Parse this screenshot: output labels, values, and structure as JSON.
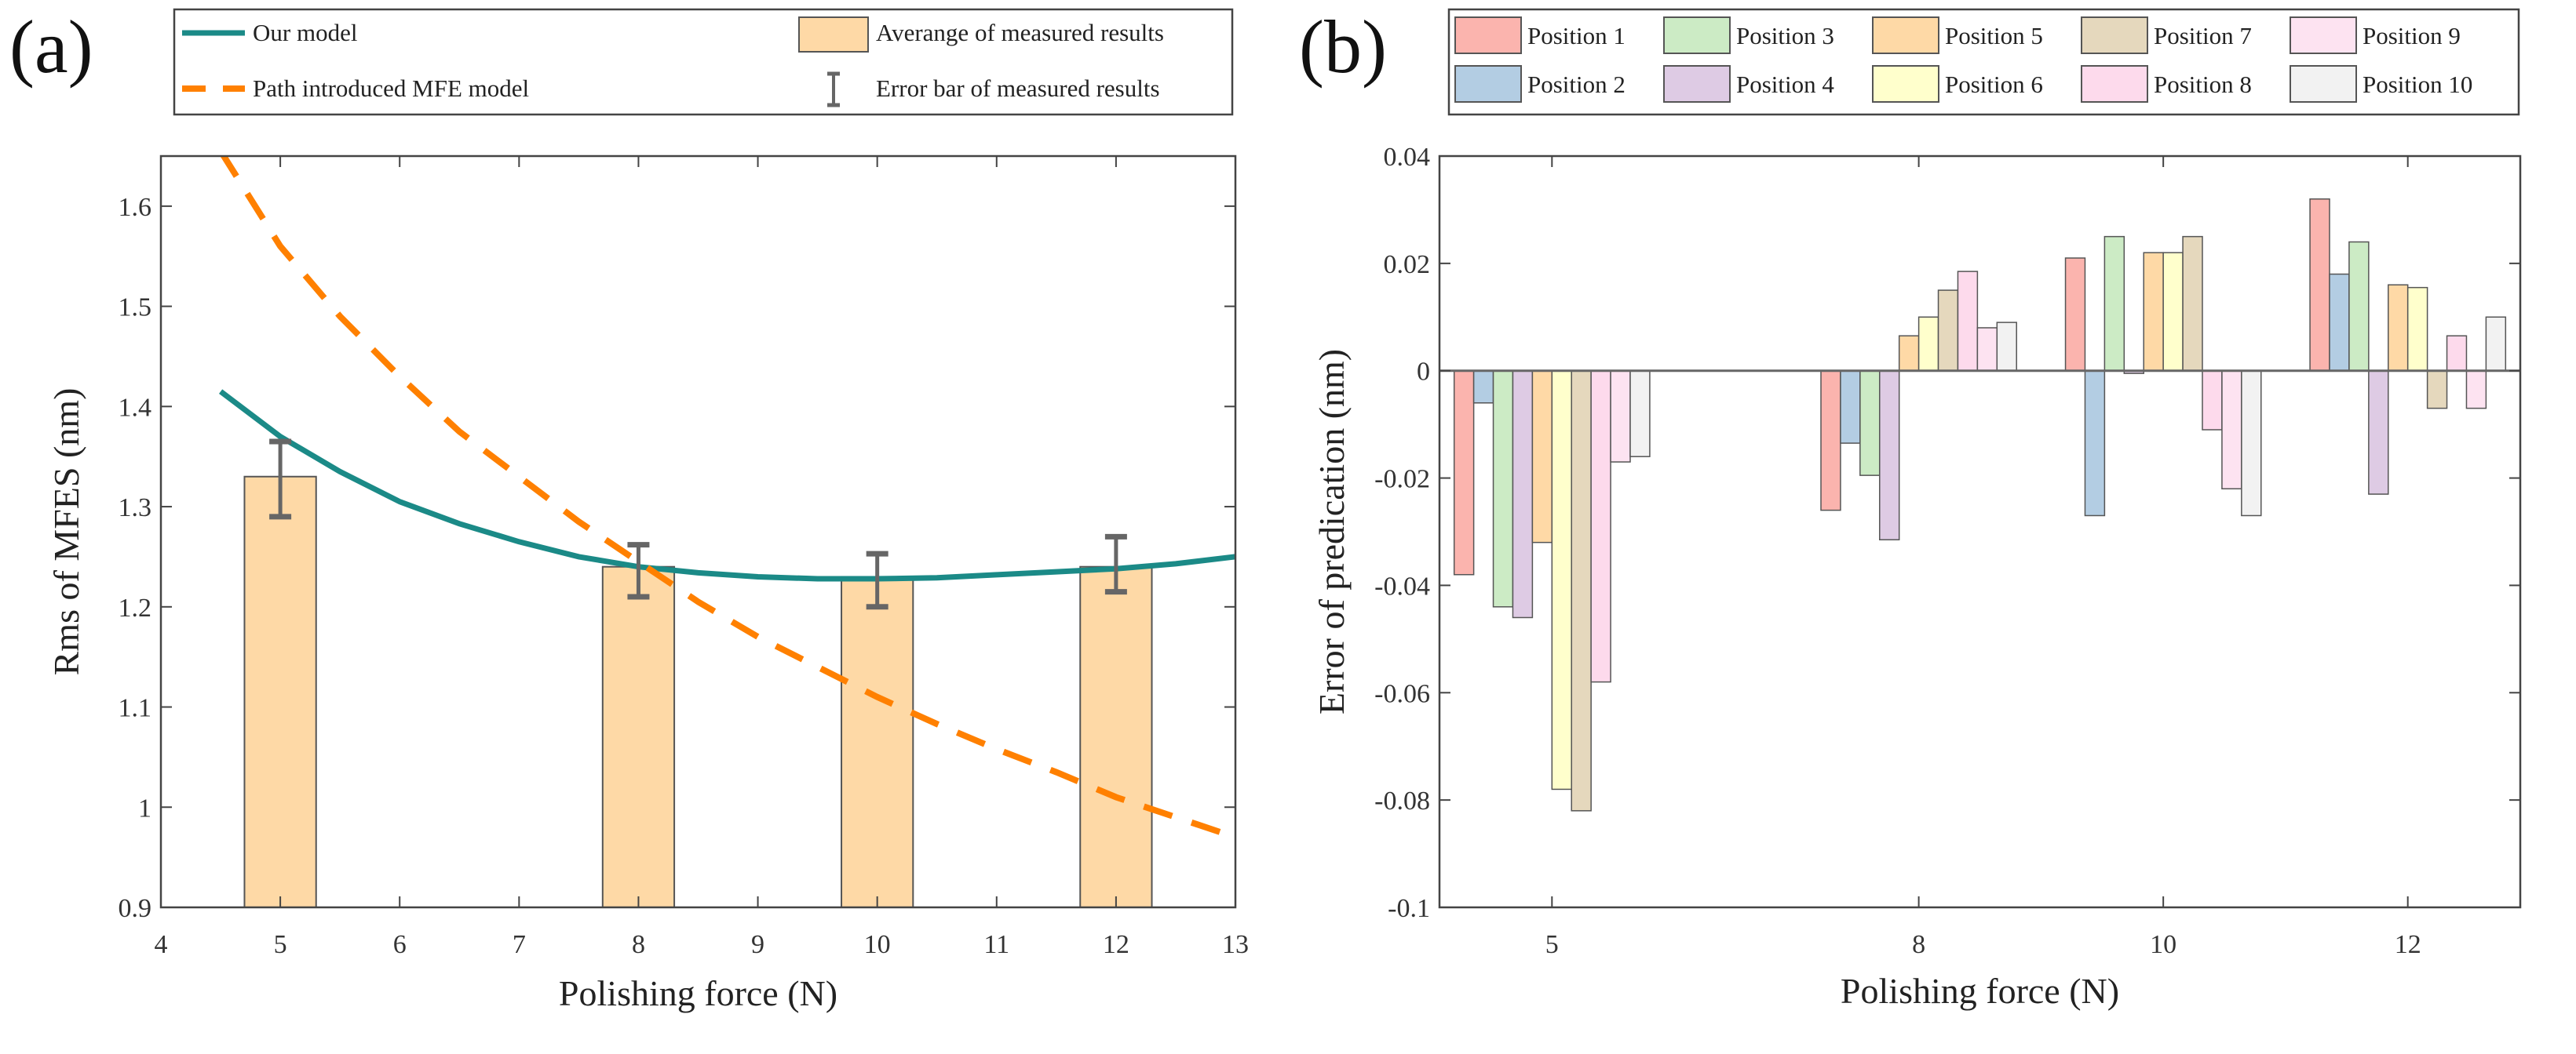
{
  "chart_data": [
    {
      "panel_label": "(a)",
      "type": "bar",
      "xlabel": "Polishing force (N)",
      "ylabel": "Rms of MFES (nm)",
      "xlim": [
        4,
        13
      ],
      "ylim": [
        0.9,
        1.65
      ],
      "xticks": [
        4,
        5,
        6,
        7,
        8,
        9,
        10,
        11,
        12,
        13
      ],
      "yticks": [
        0.9,
        1,
        1.1,
        1.2,
        1.3,
        1.4,
        1.5,
        1.6
      ],
      "ytick_labels": [
        "0.9",
        "1",
        "1.1",
        "1.2",
        "1.3",
        "1.4",
        "1.5",
        "1.6"
      ],
      "legend": [
        "Our model",
        "Path introduced MFE model",
        "Averange of measured results",
        "Error bar of measured results"
      ],
      "legend_placement": "top",
      "bars": {
        "name": "Averange of measured results",
        "x": [
          5,
          8,
          10,
          12
        ],
        "values": [
          1.33,
          1.24,
          1.23,
          1.24
        ],
        "err_low": [
          1.29,
          1.21,
          1.2,
          1.215
        ],
        "err_high": [
          1.365,
          1.262,
          1.253,
          1.27
        ],
        "color": "#fed9a6"
      },
      "series": [
        {
          "name": "Our model",
          "type": "line",
          "color": "#1b8a87",
          "x": [
            4.5,
            5,
            5.5,
            6,
            6.5,
            7,
            7.5,
            8,
            8.5,
            9,
            9.5,
            10,
            10.5,
            11,
            11.5,
            12,
            12.5,
            13
          ],
          "y": [
            1.415,
            1.37,
            1.335,
            1.305,
            1.283,
            1.265,
            1.25,
            1.24,
            1.234,
            1.23,
            1.228,
            1.228,
            1.229,
            1.232,
            1.235,
            1.238,
            1.243,
            1.25
          ]
        },
        {
          "name": "Path introduced MFE model",
          "type": "line",
          "dash": true,
          "color": "#ff8000",
          "x": [
            4.5,
            5,
            5.5,
            6,
            6.5,
            7,
            7.5,
            8,
            8.5,
            9,
            9.5,
            10,
            10.5,
            11,
            11.5,
            12,
            12.5,
            13
          ],
          "y": [
            1.655,
            1.56,
            1.49,
            1.43,
            1.375,
            1.33,
            1.285,
            1.245,
            1.205,
            1.17,
            1.14,
            1.11,
            1.083,
            1.058,
            1.035,
            1.01,
            0.99,
            0.97
          ]
        }
      ]
    },
    {
      "panel_label": "(b)",
      "type": "bar",
      "xlabel": "Polishing force (N)",
      "ylabel": "Error of predication (nm)",
      "xlim": [
        4.08,
        12.92
      ],
      "ylim": [
        -0.1,
        0.04
      ],
      "categories": [
        5,
        8,
        10,
        12
      ],
      "yticks": [
        -0.1,
        -0.08,
        -0.06,
        -0.04,
        -0.02,
        0,
        0.02,
        0.04
      ],
      "ytick_labels": [
        "-0.1",
        "-0.08",
        "-0.06",
        "-0.04",
        "-0.02",
        "0",
        "0.02",
        "0.04"
      ],
      "legend_placement": "top",
      "series": [
        {
          "name": "Position 1",
          "color": "#fbb4ae",
          "values": [
            -0.038,
            -0.026,
            0.021,
            0.032
          ]
        },
        {
          "name": "Position 2",
          "color": "#b3cde3",
          "values": [
            -0.006,
            -0.0135,
            -0.027,
            0.018
          ]
        },
        {
          "name": "Position 3",
          "color": "#ccebc5",
          "values": [
            -0.044,
            -0.0195,
            0.025,
            0.024
          ]
        },
        {
          "name": "Position 4",
          "color": "#decbe4",
          "values": [
            -0.046,
            -0.0315,
            -0.0005,
            -0.023
          ]
        },
        {
          "name": "Position 5",
          "color": "#fed9a6",
          "values": [
            -0.032,
            0.0065,
            0.022,
            0.016
          ]
        },
        {
          "name": "Position 6",
          "color": "#ffffcc",
          "values": [
            -0.078,
            0.01,
            0.022,
            0.0155
          ]
        },
        {
          "name": "Position 7",
          "color": "#e5d8bd",
          "values": [
            -0.082,
            0.015,
            0.025,
            -0.007
          ]
        },
        {
          "name": "Position 8",
          "color": "#fddaec",
          "values": [
            -0.058,
            0.0185,
            -0.011,
            0.0065
          ]
        },
        {
          "name": "Position 9",
          "color": "#fde3f1",
          "values": [
            -0.017,
            0.008,
            -0.022,
            -0.007
          ]
        },
        {
          "name": "Position 10",
          "color": "#f2f2f2",
          "values": [
            -0.016,
            0.009,
            -0.027,
            0.01
          ]
        }
      ]
    }
  ]
}
